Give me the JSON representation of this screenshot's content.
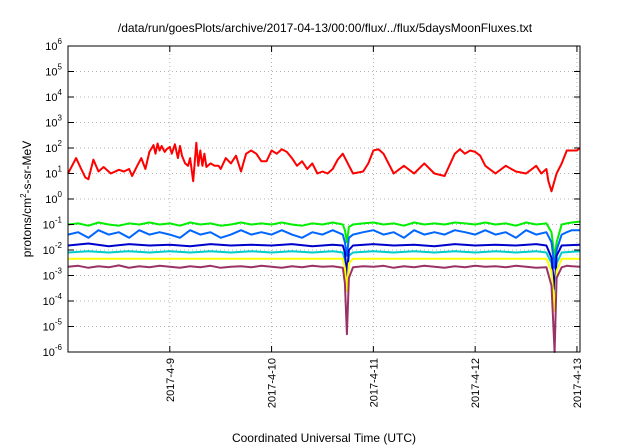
{
  "chart_data": {
    "type": "line",
    "title": "/data/run/goesPlots/archive/2017-04-13/00:00/flux/../flux/5daysMoonFluxes.txt",
    "xlabel": "Coordinated Universal Time (UTC)",
    "ylabel": "protons/cm²-s-sr-MeV",
    "ylabel_parts": {
      "pre": "protons/cm",
      "sup": "2",
      "post": "-s-sr-MeV"
    },
    "yscale": "log",
    "ylim": [
      1e-06,
      1000000.0
    ],
    "xlim": [
      0.0,
      5.03
    ],
    "grid": true,
    "x_ticks": [
      {
        "pos": 1.0,
        "label": "2017-4-9"
      },
      {
        "pos": 2.0,
        "label": "2017-4-10"
      },
      {
        "pos": 3.0,
        "label": "2017-4-11"
      },
      {
        "pos": 4.0,
        "label": "2017-4-12"
      },
      {
        "pos": 5.0,
        "label": "2017-4-13"
      }
    ],
    "y_ticks": [
      {
        "exp": -6,
        "base": "10",
        "sup": "-6"
      },
      {
        "exp": -5,
        "base": "10",
        "sup": "-5"
      },
      {
        "exp": -4,
        "base": "10",
        "sup": "-4"
      },
      {
        "exp": -3,
        "base": "10",
        "sup": "-3"
      },
      {
        "exp": -2,
        "base": "10",
        "sup": "-2"
      },
      {
        "exp": -1,
        "base": "10",
        "sup": "-1"
      },
      {
        "exp": 0,
        "base": "10",
        "sup": "0"
      },
      {
        "exp": 1,
        "base": "10",
        "sup": "1"
      },
      {
        "exp": 2,
        "base": "10",
        "sup": "2"
      },
      {
        "exp": 3,
        "base": "10",
        "sup": "3"
      },
      {
        "exp": 4,
        "base": "10",
        "sup": "4"
      },
      {
        "exp": 5,
        "base": "10",
        "sup": "5"
      },
      {
        "exp": 6,
        "base": "10",
        "sup": "6"
      }
    ],
    "series": [
      {
        "color": "#ff0000",
        "x": [
          0.0,
          0.08,
          0.13,
          0.17,
          0.2,
          0.25,
          0.3,
          0.35,
          0.42,
          0.5,
          0.55,
          0.6,
          0.63,
          0.68,
          0.72,
          0.76,
          0.8,
          0.84,
          0.86,
          0.88,
          0.9,
          0.92,
          0.95,
          0.97,
          1.0,
          1.02,
          1.05,
          1.08,
          1.1,
          1.12,
          1.15,
          1.18,
          1.2,
          1.23,
          1.26,
          1.28,
          1.3,
          1.32,
          1.34,
          1.36,
          1.4,
          1.44,
          1.48,
          1.5,
          1.55,
          1.6,
          1.65,
          1.7,
          1.75,
          1.8,
          1.85,
          1.9,
          1.95,
          2.0,
          2.05,
          2.1,
          2.15,
          2.2,
          2.25,
          2.3,
          2.35,
          2.4,
          2.45,
          2.5,
          2.55,
          2.6,
          2.65,
          2.7,
          2.8,
          2.9,
          2.95,
          3.0,
          3.05,
          3.1,
          3.2,
          3.3,
          3.4,
          3.5,
          3.6,
          3.7,
          3.8,
          3.85,
          3.9,
          3.95,
          4.0,
          4.05,
          4.1,
          4.2,
          4.3,
          4.4,
          4.5,
          4.6,
          4.65,
          4.7,
          4.72,
          4.75,
          4.8,
          4.85,
          4.9,
          5.0,
          5.03
        ],
        "values": [
          10,
          40,
          15,
          7,
          6,
          35,
          12,
          18,
          10,
          14,
          12,
          15,
          8,
          20,
          40,
          15,
          70,
          130,
          60,
          150,
          80,
          120,
          70,
          90,
          110,
          60,
          140,
          40,
          120,
          50,
          25,
          20,
          40,
          5,
          160,
          20,
          80,
          20,
          60,
          18,
          25,
          20,
          20,
          15,
          40,
          25,
          50,
          12,
          60,
          80,
          60,
          30,
          30,
          80,
          60,
          90,
          70,
          40,
          20,
          30,
          15,
          25,
          10,
          12,
          10,
          15,
          35,
          60,
          10,
          12,
          25,
          80,
          90,
          60,
          10,
          20,
          10,
          25,
          10,
          8,
          60,
          90,
          60,
          80,
          70,
          50,
          20,
          10,
          20,
          12,
          10,
          20,
          10,
          15,
          5,
          2,
          10,
          25,
          80,
          80,
          100
        ]
      },
      {
        "color": "#00ee00",
        "x": [
          0.0,
          0.1,
          0.2,
          0.3,
          0.4,
          0.5,
          0.6,
          0.7,
          0.8,
          0.9,
          1.0,
          1.1,
          1.2,
          1.3,
          1.4,
          1.5,
          1.6,
          1.7,
          1.8,
          1.9,
          2.0,
          2.1,
          2.2,
          2.3,
          2.4,
          2.5,
          2.6,
          2.7,
          2.72,
          2.74,
          2.76,
          2.8,
          2.9,
          3.0,
          3.1,
          3.2,
          3.3,
          3.4,
          3.5,
          3.6,
          3.7,
          3.8,
          3.9,
          4.0,
          4.1,
          4.2,
          4.3,
          4.4,
          4.5,
          4.6,
          4.7,
          4.75,
          4.78,
          4.8,
          4.85,
          4.9,
          4.95,
          5.03
        ],
        "values": [
          0.1,
          0.11,
          0.09,
          0.12,
          0.1,
          0.09,
          0.11,
          0.1,
          0.12,
          0.1,
          0.11,
          0.09,
          0.12,
          0.1,
          0.11,
          0.09,
          0.1,
          0.12,
          0.1,
          0.11,
          0.1,
          0.12,
          0.1,
          0.09,
          0.11,
          0.1,
          0.12,
          0.1,
          0.06,
          0.02,
          0.08,
          0.1,
          0.11,
          0.12,
          0.1,
          0.11,
          0.09,
          0.12,
          0.1,
          0.11,
          0.1,
          0.12,
          0.11,
          0.1,
          0.12,
          0.1,
          0.11,
          0.09,
          0.12,
          0.1,
          0.11,
          0.05,
          0.005,
          0.02,
          0.1,
          0.11,
          0.12,
          0.13
        ]
      },
      {
        "color": "#00cccc",
        "x": [
          0.0,
          0.2,
          0.4,
          0.6,
          0.8,
          1.0,
          1.2,
          1.4,
          1.6,
          1.8,
          2.0,
          2.2,
          2.4,
          2.6,
          2.7,
          2.72,
          2.74,
          2.76,
          2.8,
          3.0,
          3.2,
          3.4,
          3.6,
          3.8,
          4.0,
          4.2,
          4.4,
          4.6,
          4.7,
          4.75,
          4.78,
          4.8,
          4.85,
          5.03
        ],
        "values": [
          0.008,
          0.009,
          0.008,
          0.009,
          0.008,
          0.009,
          0.008,
          0.009,
          0.008,
          0.009,
          0.008,
          0.009,
          0.008,
          0.009,
          0.008,
          0.004,
          0.0006,
          0.006,
          0.008,
          0.009,
          0.008,
          0.009,
          0.008,
          0.009,
          0.008,
          0.009,
          0.008,
          0.009,
          0.008,
          0.003,
          0.00012,
          0.003,
          0.008,
          0.009
        ]
      },
      {
        "color": "#0066ff",
        "x": [
          0.0,
          0.1,
          0.2,
          0.3,
          0.4,
          0.5,
          0.6,
          0.7,
          0.8,
          0.9,
          1.0,
          1.1,
          1.2,
          1.3,
          1.4,
          1.5,
          1.6,
          1.7,
          1.8,
          1.9,
          2.0,
          2.1,
          2.2,
          2.3,
          2.4,
          2.5,
          2.6,
          2.7,
          2.72,
          2.74,
          2.76,
          2.8,
          2.9,
          3.0,
          3.1,
          3.2,
          3.3,
          3.4,
          3.5,
          3.6,
          3.7,
          3.8,
          3.9,
          4.0,
          4.1,
          4.2,
          4.3,
          4.4,
          4.5,
          4.6,
          4.7,
          4.75,
          4.78,
          4.8,
          4.85,
          4.9,
          4.95,
          5.03
        ],
        "values": [
          0.04,
          0.05,
          0.03,
          0.06,
          0.04,
          0.05,
          0.03,
          0.06,
          0.04,
          0.05,
          0.04,
          0.03,
          0.06,
          0.04,
          0.05,
          0.03,
          0.04,
          0.06,
          0.04,
          0.05,
          0.04,
          0.06,
          0.04,
          0.03,
          0.05,
          0.04,
          0.06,
          0.04,
          0.02,
          0.006,
          0.03,
          0.04,
          0.05,
          0.06,
          0.04,
          0.05,
          0.03,
          0.06,
          0.04,
          0.05,
          0.04,
          0.06,
          0.05,
          0.04,
          0.06,
          0.04,
          0.05,
          0.03,
          0.06,
          0.04,
          0.05,
          0.02,
          0.002,
          0.01,
          0.04,
          0.05,
          0.06,
          0.06
        ]
      },
      {
        "color": "#0000cc",
        "x": [
          0.0,
          0.2,
          0.4,
          0.6,
          0.8,
          1.0,
          1.2,
          1.4,
          1.6,
          1.8,
          2.0,
          2.2,
          2.4,
          2.6,
          2.7,
          2.72,
          2.74,
          2.76,
          2.8,
          3.0,
          3.2,
          3.4,
          3.6,
          3.8,
          4.0,
          4.2,
          4.4,
          4.6,
          4.7,
          4.75,
          4.78,
          4.8,
          4.85,
          5.03
        ],
        "values": [
          0.015,
          0.018,
          0.014,
          0.017,
          0.015,
          0.016,
          0.014,
          0.017,
          0.015,
          0.016,
          0.015,
          0.017,
          0.014,
          0.016,
          0.015,
          0.008,
          0.001,
          0.01,
          0.015,
          0.017,
          0.015,
          0.016,
          0.014,
          0.017,
          0.015,
          0.016,
          0.015,
          0.017,
          0.015,
          0.005,
          0.0003,
          0.006,
          0.015,
          0.016
        ]
      },
      {
        "color": "#ffff00",
        "x": [
          0.0,
          0.5,
          1.0,
          1.5,
          2.0,
          2.5,
          2.7,
          2.72,
          2.74,
          2.76,
          2.8,
          3.2,
          3.7,
          4.2,
          4.7,
          4.75,
          4.78,
          4.8,
          4.85,
          5.03
        ],
        "values": [
          0.0045,
          0.0045,
          0.0045,
          0.0045,
          0.0045,
          0.0045,
          0.0045,
          0.002,
          0.00025,
          0.003,
          0.0045,
          0.0045,
          0.0045,
          0.0045,
          0.0045,
          0.0015,
          4e-05,
          0.0015,
          0.0045,
          0.0045
        ]
      },
      {
        "color": "#993366",
        "x": [
          0.0,
          0.1,
          0.2,
          0.3,
          0.4,
          0.5,
          0.6,
          0.7,
          0.8,
          0.9,
          1.0,
          1.1,
          1.2,
          1.3,
          1.4,
          1.5,
          1.6,
          1.7,
          1.8,
          1.9,
          2.0,
          2.1,
          2.2,
          2.3,
          2.4,
          2.5,
          2.6,
          2.7,
          2.72,
          2.74,
          2.76,
          2.8,
          2.9,
          3.0,
          3.1,
          3.2,
          3.3,
          3.4,
          3.5,
          3.6,
          3.7,
          3.8,
          3.9,
          4.0,
          4.1,
          4.2,
          4.3,
          4.4,
          4.5,
          4.6,
          4.7,
          4.75,
          4.78,
          4.8,
          4.85,
          4.9,
          4.95,
          5.03
        ],
        "values": [
          0.0022,
          0.0024,
          0.002,
          0.0023,
          0.0021,
          0.0025,
          0.002,
          0.0023,
          0.0021,
          0.0024,
          0.0022,
          0.002,
          0.0023,
          0.0021,
          0.0024,
          0.002,
          0.0022,
          0.0023,
          0.0021,
          0.0024,
          0.0022,
          0.002,
          0.0023,
          0.0021,
          0.0024,
          0.0022,
          0.0023,
          0.002,
          0.0005,
          5e-06,
          0.0008,
          0.0021,
          0.0023,
          0.0022,
          0.0024,
          0.002,
          0.0023,
          0.0021,
          0.0024,
          0.0022,
          0.002,
          0.0023,
          0.0021,
          0.0024,
          0.0022,
          0.0023,
          0.0021,
          0.0024,
          0.0022,
          0.002,
          0.0021,
          0.0004,
          1e-06,
          0.0008,
          0.0021,
          0.0024,
          0.0023,
          0.0022
        ]
      }
    ]
  }
}
